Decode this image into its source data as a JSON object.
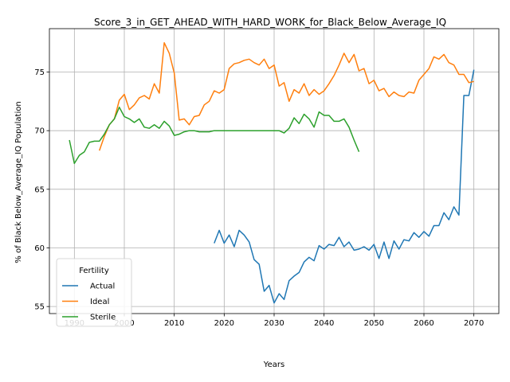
{
  "chart_data": {
    "type": "line",
    "title": "Score_3_in_GET_AHEAD_WITH_HARD_WORK_for_Black_Below_Average_IQ",
    "xlabel": "Years",
    "ylabel": "% of Black Below_Average_IQ Population",
    "xlim": [
      1985,
      2075
    ],
    "ylim": [
      54.4,
      78.7
    ],
    "xticks": [
      1990,
      2000,
      2010,
      2020,
      2030,
      2040,
      2050,
      2060,
      2070
    ],
    "yticks": [
      55,
      60,
      65,
      70,
      75
    ],
    "grid": true,
    "legend": {
      "title": "Fertility",
      "placement": "lower-left"
    },
    "series": [
      {
        "name": "Actual",
        "color": "#1f77b4",
        "x": [
          2018,
          2019,
          2020,
          2021,
          2022,
          2023,
          2024,
          2025,
          2026,
          2027,
          2028,
          2029,
          2030,
          2031,
          2032,
          2033,
          2034,
          2035,
          2036,
          2037,
          2038,
          2039,
          2040,
          2041,
          2042,
          2043,
          2044,
          2045,
          2046,
          2047,
          2048,
          2049,
          2050,
          2051,
          2052,
          2053,
          2054,
          2055,
          2056,
          2057,
          2058,
          2059,
          2060,
          2061,
          2062,
          2063,
          2064,
          2065,
          2066,
          2067,
          2068,
          2069,
          2070
        ],
        "values": [
          60.4,
          61.5,
          60.4,
          61.1,
          60.1,
          61.5,
          61.1,
          60.5,
          59.0,
          58.6,
          56.3,
          56.8,
          55.3,
          56.1,
          55.6,
          57.2,
          57.6,
          57.9,
          58.8,
          59.2,
          58.9,
          60.2,
          59.9,
          60.3,
          60.2,
          60.9,
          60.1,
          60.5,
          59.8,
          59.9,
          60.1,
          59.8,
          60.3,
          59.1,
          60.5,
          59.1,
          60.6,
          59.9,
          60.7,
          60.6,
          61.3,
          60.9,
          61.4,
          61.0,
          61.9,
          61.9,
          63.0,
          62.4,
          63.5,
          62.8,
          73.0,
          73.0,
          75.2
        ]
      },
      {
        "name": "Ideal",
        "color": "#ff7f0e",
        "x": [
          1995,
          1996,
          1997,
          1998,
          1999,
          2000,
          2001,
          2002,
          2003,
          2004,
          2005,
          2006,
          2007,
          2008,
          2009,
          2010,
          2011,
          2012,
          2013,
          2014,
          2015,
          2016,
          2017,
          2018,
          2019,
          2020,
          2021,
          2022,
          2023,
          2024,
          2025,
          2026,
          2027,
          2028,
          2029,
          2030,
          2031,
          2032,
          2033,
          2034,
          2035,
          2036,
          2037,
          2038,
          2039,
          2040,
          2041,
          2042,
          2043,
          2044,
          2045,
          2046,
          2047,
          2048,
          2049,
          2050,
          2051,
          2052,
          2053,
          2054,
          2055,
          2056,
          2057,
          2058,
          2059,
          2060,
          2061,
          2062,
          2063,
          2064,
          2065,
          2066,
          2067,
          2068,
          2069,
          2070
        ],
        "values": [
          68.3,
          69.5,
          70.5,
          71.0,
          72.6,
          73.1,
          71.8,
          72.2,
          72.8,
          73.0,
          72.7,
          74.0,
          73.2,
          77.5,
          76.6,
          74.9,
          70.9,
          71.0,
          70.5,
          71.2,
          71.3,
          72.2,
          72.5,
          73.4,
          73.2,
          73.5,
          75.3,
          75.7,
          75.8,
          76.0,
          76.1,
          75.8,
          75.6,
          76.1,
          75.3,
          75.6,
          73.8,
          74.1,
          72.5,
          73.5,
          73.2,
          74.0,
          73.0,
          73.5,
          73.1,
          73.4,
          74.0,
          74.7,
          75.6,
          76.6,
          75.8,
          76.5,
          75.1,
          75.3,
          74.0,
          74.3,
          73.4,
          73.6,
          72.9,
          73.3,
          73.0,
          72.9,
          73.3,
          73.2,
          74.3,
          74.8,
          75.3,
          76.3,
          76.1,
          76.5,
          75.8,
          75.6,
          74.8,
          74.8,
          74.1,
          74.2
        ]
      },
      {
        "name": "Sterile",
        "color": "#2ca02c",
        "x": [
          1989,
          1990,
          1991,
          1992,
          1993,
          1994,
          1995,
          1996,
          1997,
          1998,
          1999,
          2000,
          2001,
          2002,
          2003,
          2004,
          2005,
          2006,
          2007,
          2008,
          2009,
          2010,
          2011,
          2012,
          2013,
          2014,
          2015,
          2016,
          2017,
          2018,
          2019,
          2020,
          2021,
          2022,
          2023,
          2024,
          2025,
          2026,
          2027,
          2028,
          2029,
          2030,
          2031,
          2032,
          2033,
          2034,
          2035,
          2036,
          2037,
          2038,
          2039,
          2040,
          2041,
          2042,
          2043,
          2044,
          2045,
          2046,
          2047
        ],
        "values": [
          69.2,
          67.2,
          67.9,
          68.2,
          69.0,
          69.1,
          69.1,
          69.7,
          70.5,
          71.0,
          72.0,
          71.2,
          71.0,
          70.7,
          71.0,
          70.3,
          70.2,
          70.5,
          70.2,
          70.8,
          70.4,
          69.6,
          69.7,
          69.9,
          70.0,
          70.0,
          69.9,
          69.9,
          69.9,
          70.0,
          70.0,
          70.0,
          70.0,
          70.0,
          70.0,
          70.0,
          70.0,
          70.0,
          70.0,
          70.0,
          70.0,
          70.0,
          70.0,
          69.8,
          70.2,
          71.1,
          70.6,
          71.4,
          71.0,
          70.3,
          71.6,
          71.3,
          71.3,
          70.8,
          70.8,
          71.0,
          70.3,
          69.2,
          68.2
        ]
      }
    ]
  }
}
